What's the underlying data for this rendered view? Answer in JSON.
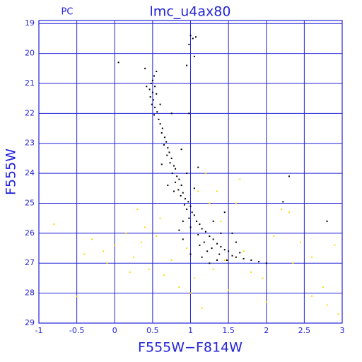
{
  "chart_data": {
    "type": "scatter",
    "title": "lmc_u4ax80",
    "annotation": "PC",
    "x_label": "F555W−F814W",
    "y_label": "F555W",
    "xlim": [
      -1,
      3
    ],
    "ylim": [
      29,
      18.9
    ],
    "xticks": [
      -1,
      -0.5,
      0,
      0.5,
      1,
      1.5,
      2,
      2.5,
      3
    ],
    "yticks": [
      19,
      20,
      21,
      22,
      23,
      24,
      25,
      26,
      27,
      28,
      29
    ],
    "grid": true,
    "grid_color": "#2323d8",
    "series": [
      {
        "color": "#000000",
        "x": [
          1.0,
          1.03,
          1.07,
          0.98,
          0.05,
          0.95,
          1.05,
          0.4,
          0.55,
          0.52,
          0.5,
          0.48,
          0.53,
          0.46,
          0.5,
          0.55,
          0.47,
          0.51,
          0.49,
          0.53,
          0.56,
          0.52,
          0.58,
          0.6,
          0.63,
          0.62,
          0.66,
          0.68,
          0.65,
          0.7,
          0.72,
          0.69,
          0.75,
          0.73,
          0.78,
          0.8,
          0.76,
          0.82,
          0.85,
          0.8,
          0.88,
          0.84,
          0.9,
          0.87,
          0.93,
          0.97,
          0.92,
          1.0,
          0.95,
          1.02,
          1.05,
          0.98,
          1.08,
          1.12,
          1.0,
          1.15,
          1.2,
          1.1,
          1.25,
          1.3,
          1.18,
          1.35,
          1.4,
          1.28,
          1.45,
          1.5,
          1.38,
          1.55,
          1.6,
          1.7,
          1.8,
          1.9,
          2.0,
          1.65,
          1.48,
          1.22,
          1.12,
          0.9,
          0.85,
          1.3,
          1.45,
          1.4,
          2.22,
          2.8,
          0.75,
          0.98,
          0.6,
          0.42,
          1.05,
          1.1,
          0.95,
          0.7,
          1.15,
          1.25,
          1.0,
          0.9,
          1.35,
          1.6,
          1.55,
          2.3,
          0.62,
          0.88,
          0.78
        ],
        "y": [
          19.4,
          19.5,
          19.45,
          19.7,
          20.3,
          20.4,
          20.1,
          20.5,
          20.6,
          20.75,
          20.9,
          21.0,
          21.1,
          21.2,
          21.3,
          21.35,
          21.45,
          21.55,
          21.7,
          21.8,
          21.95,
          22.05,
          22.2,
          22.35,
          22.5,
          22.65,
          22.8,
          22.95,
          23.05,
          23.15,
          23.3,
          23.4,
          23.5,
          23.65,
          23.75,
          23.85,
          24.0,
          24.1,
          24.2,
          24.3,
          24.4,
          24.55,
          24.65,
          24.75,
          24.85,
          24.95,
          25.05,
          25.1,
          25.2,
          25.3,
          25.4,
          25.5,
          25.6,
          25.7,
          25.8,
          25.85,
          25.95,
          26.05,
          26.1,
          26.2,
          26.3,
          26.35,
          26.45,
          26.5,
          26.55,
          26.6,
          26.7,
          26.75,
          26.8,
          26.85,
          26.9,
          26.95,
          27.0,
          26.65,
          26.9,
          26.6,
          26.4,
          25.6,
          25.9,
          25.6,
          25.3,
          26.0,
          24.95,
          25.6,
          22.0,
          22.0,
          21.7,
          21.1,
          24.5,
          23.8,
          24.0,
          24.4,
          26.8,
          27.0,
          26.7,
          26.2,
          26.9,
          26.3,
          26.0,
          24.1,
          23.7,
          23.2,
          24.6
        ]
      },
      {
        "color": "#ffd700",
        "x": [
          -0.8,
          -0.5,
          -0.4,
          -0.3,
          -0.15,
          -0.1,
          0.0,
          0.15,
          0.25,
          0.3,
          0.35,
          0.4,
          0.45,
          0.55,
          0.65,
          0.75,
          0.85,
          0.95,
          1.05,
          1.15,
          1.2,
          1.25,
          1.3,
          1.35,
          1.4,
          1.45,
          1.5,
          1.6,
          1.7,
          1.8,
          1.95,
          2.1,
          2.2,
          2.3,
          2.35,
          2.45,
          2.6,
          2.6,
          2.75,
          2.8,
          2.9,
          2.95,
          1.0,
          0.6,
          1.1,
          0.2,
          2.0,
          1.65
        ],
        "y": [
          25.7,
          28.1,
          26.7,
          26.2,
          26.6,
          27.0,
          26.4,
          26.0,
          26.8,
          25.2,
          26.3,
          25.8,
          27.2,
          26.1,
          27.4,
          26.9,
          27.8,
          26.5,
          27.5,
          28.5,
          24.0,
          25.0,
          27.2,
          24.6,
          25.6,
          26.9,
          27.9,
          25.0,
          26.6,
          27.3,
          27.5,
          26.1,
          25.2,
          25.3,
          27.0,
          26.3,
          26.8,
          28.1,
          27.8,
          28.4,
          26.4,
          28.7,
          28.0,
          25.5,
          24.6,
          27.3,
          28.3,
          24.2
        ]
      }
    ]
  }
}
